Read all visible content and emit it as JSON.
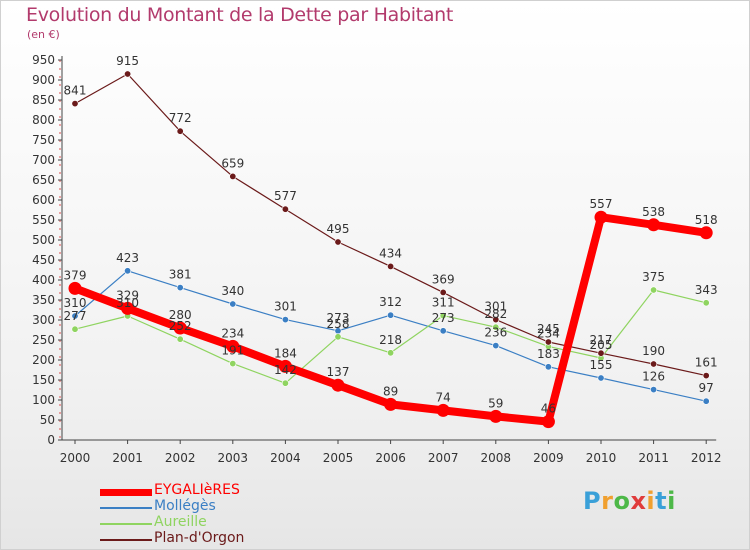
{
  "title": "Evolution du Montant de la Dette par Habitant",
  "unit": "(en €)",
  "logo": {
    "letters": [
      "P",
      "r",
      "o",
      "x",
      "i",
      "t",
      "i"
    ],
    "colors": [
      "#3aa0d8",
      "#f0a030",
      "#4db848",
      "#e03c3c",
      "#f0a030",
      "#3aa0d8",
      "#4db848"
    ]
  },
  "chart_data": {
    "type": "line",
    "x": [
      "2000",
      "2001",
      "2002",
      "2003",
      "2004",
      "2005",
      "2006",
      "2007",
      "2008",
      "2009",
      "2010",
      "2011",
      "2012"
    ],
    "ylim": [
      0,
      950
    ],
    "yticks": [
      0,
      50,
      100,
      150,
      200,
      250,
      300,
      350,
      400,
      450,
      500,
      550,
      600,
      650,
      700,
      750,
      800,
      850,
      900,
      950
    ],
    "grid": false,
    "legend_position": "bottom-left",
    "series": [
      {
        "name": "EYGALIèRES",
        "color": "#ff0000",
        "emphasis": true,
        "values": [
          379,
          329,
          280,
          234,
          184,
          137,
          89,
          74,
          59,
          46,
          557,
          538,
          518
        ]
      },
      {
        "name": "Mollégès",
        "color": "#3b7fc4",
        "emphasis": false,
        "values": [
          310,
          423,
          381,
          340,
          301,
          273,
          312,
          273,
          236,
          183,
          155,
          126,
          97
        ]
      },
      {
        "name": "Aureille",
        "color": "#8fd460",
        "emphasis": false,
        "values": [
          277,
          310,
          252,
          191,
          142,
          258,
          218,
          311,
          282,
          234,
          205,
          375,
          343
        ]
      },
      {
        "name": "Plan-d'Orgon",
        "color": "#6b1a1a",
        "emphasis": false,
        "values": [
          841,
          915,
          772,
          659,
          577,
          495,
          434,
          369,
          301,
          245,
          217,
          190,
          161
        ]
      }
    ]
  }
}
